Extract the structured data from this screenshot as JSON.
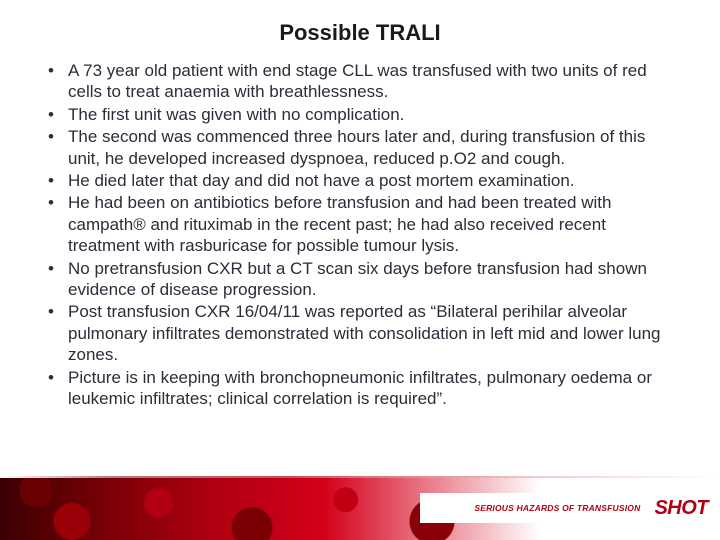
{
  "slide": {
    "title": "Possible TRALI",
    "title_fontsize": 22,
    "title_color": "#1a1a1a",
    "bullet_fontsize": 17,
    "bullet_color": "#2c2c3a",
    "bullets": [
      "A 73 year old patient with end stage CLL was transfused with two units of red cells to treat anaemia with breathlessness.",
      "The first unit was given with no complication.",
      "The second was commenced three hours later and, during transfusion of this unit, he developed increased dyspnoea, reduced p.O2 and cough.",
      "He died later that day and did not have a post mortem examination.",
      "He had been on antibiotics before transfusion and had been treated with campath® and rituximab in the recent past; he had also received recent treatment with rasburicase for possible tumour lysis.",
      "No pretransfusion CXR but a CT scan six days before transfusion had shown evidence of disease progression.",
      "Post transfusion CXR 16/04/11 was reported as “Bilateral perihilar alveolar pulmonary infiltrates demonstrated with consolidation in left mid and lower lung zones.",
      "Picture is in keeping with bronchopneumonic infiltrates, pulmonary oedema or leukemic infiltrates; clinical correlation is required”."
    ]
  },
  "footer": {
    "tagline": "SERIOUS HAZARDS OF TRANSFUSION",
    "logo_text": "SHOT",
    "brand_color": "#b00014",
    "band_height": 62
  },
  "background_color": "#ffffff"
}
